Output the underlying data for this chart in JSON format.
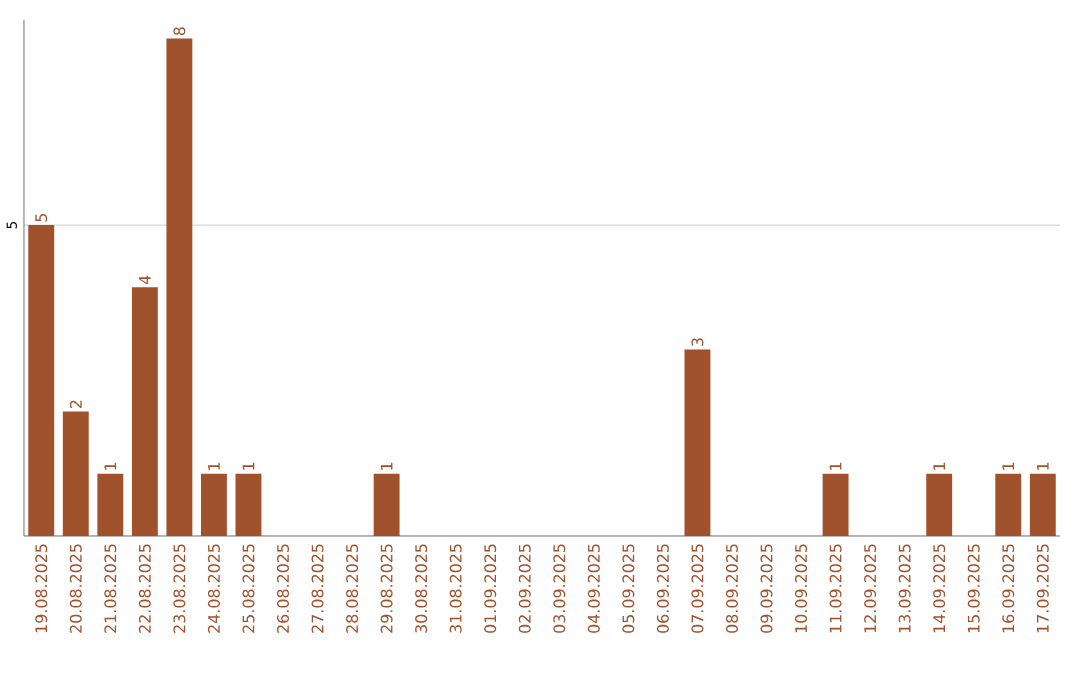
{
  "chart_data": {
    "type": "bar",
    "categories": [
      "19.08.2025",
      "20.08.2025",
      "21.08.2025",
      "22.08.2025",
      "23.08.2025",
      "24.08.2025",
      "25.08.2025",
      "26.08.2025",
      "27.08.2025",
      "28.08.2025",
      "29.08.2025",
      "30.08.2025",
      "31.08.2025",
      "01.09.2025",
      "02.09.2025",
      "03.09.2025",
      "04.09.2025",
      "05.09.2025",
      "06.09.2025",
      "07.09.2025",
      "08.09.2025",
      "09.09.2025",
      "10.09.2025",
      "11.09.2025",
      "12.09.2025",
      "13.09.2025",
      "14.09.2025",
      "15.09.2025",
      "16.09.2025",
      "17.09.2025"
    ],
    "values": [
      5,
      2,
      1,
      4,
      8,
      1,
      1,
      0,
      0,
      0,
      1,
      0,
      0,
      0,
      0,
      0,
      0,
      0,
      0,
      3,
      0,
      0,
      0,
      1,
      0,
      0,
      1,
      0,
      1,
      1
    ],
    "value_labels": [
      "5",
      "2",
      "1",
      "4",
      "8",
      "1",
      "1",
      null,
      null,
      null,
      "1",
      null,
      null,
      null,
      null,
      null,
      null,
      null,
      null,
      "3",
      null,
      null,
      null,
      "1",
      null,
      null,
      "1",
      null,
      "1",
      "1"
    ],
    "color": "#a0522d",
    "ylim": [
      0,
      8.3
    ],
    "yticks": [
      5
    ],
    "grid": "y"
  }
}
